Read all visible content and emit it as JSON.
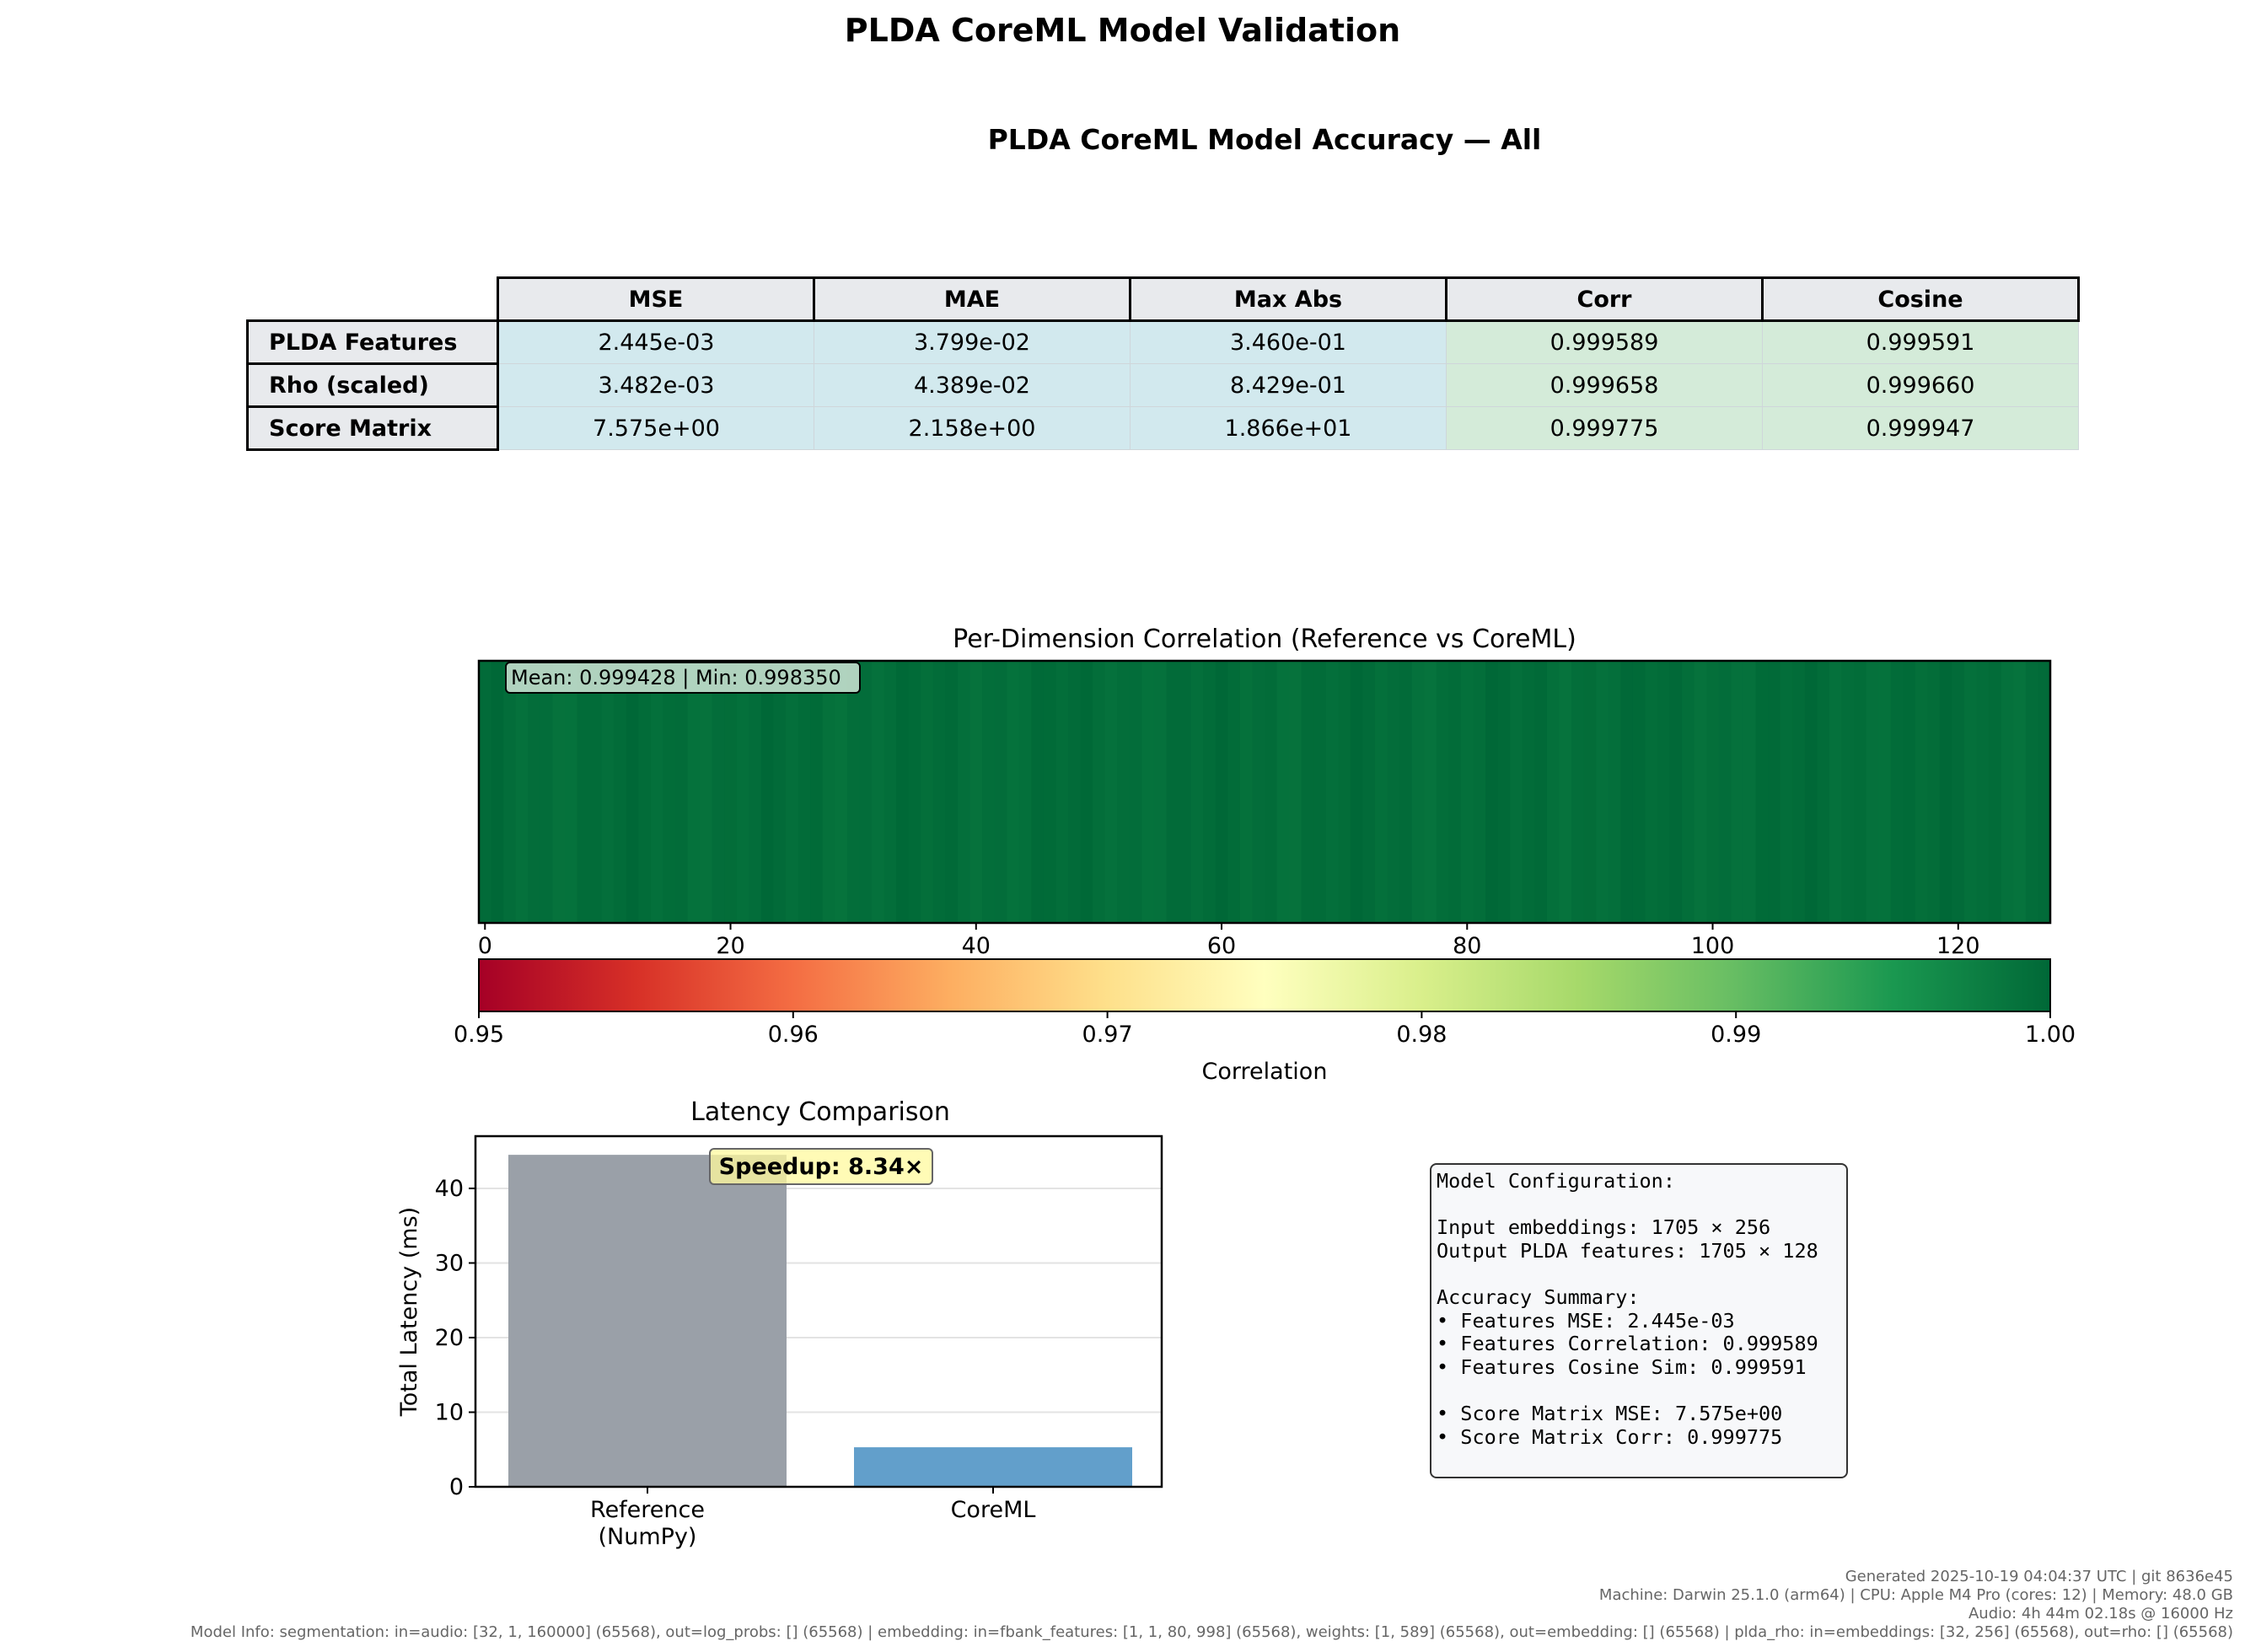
{
  "title": "PLDA CoreML Model Validation",
  "accuracy_table": {
    "title": "PLDA CoreML Model Accuracy — All",
    "columns": [
      "MSE",
      "MAE",
      "Max Abs",
      "Corr",
      "Cosine"
    ],
    "rows": [
      {
        "label": "PLDA Features",
        "cells": [
          "2.445e-03",
          "3.799e-02",
          "3.460e-01",
          "0.999589",
          "0.999591"
        ]
      },
      {
        "label": "Rho (scaled)",
        "cells": [
          "3.482e-03",
          "4.389e-02",
          "8.429e-01",
          "0.999658",
          "0.999660"
        ]
      },
      {
        "label": "Score Matrix",
        "cells": [
          "7.575e+00",
          "2.158e+00",
          "1.866e+01",
          "0.999775",
          "0.999947"
        ]
      }
    ]
  },
  "config_box": {
    "text": "Model Configuration:\n\nInput embeddings: 1705 × 256\nOutput PLDA features: 1705 × 128\n\nAccuracy Summary:\n• Features MSE: 2.445e-03\n• Features Correlation: 0.999589\n• Features Cosine Sim: 0.999591\n\n• Score Matrix MSE: 7.575e+00\n• Score Matrix Corr: 0.999775"
  },
  "footer": {
    "line1": "Generated 2025-10-19 04:04:37 UTC | git 8636e45",
    "line2": "Machine: Darwin 25.1.0 (arm64) | CPU: Apple M4 Pro (cores: 12) | Memory: 48.0 GB",
    "line3": "Audio: 4h 44m 02.18s @ 16000 Hz",
    "line4": "Model Info: segmentation: in=audio: [32, 1, 160000] (65568), out=log_probs: [] (65568) | embedding: in=fbank_features: [1, 1, 80, 998] (65568), weights: [1, 589] (65568), out=embedding: [] (65568) | plda_rho: in=embeddings: [32, 256] (65568), out=rho: [] (65568)"
  },
  "chart_data": [
    {
      "type": "heatmap",
      "title": "Per-Dimension Correlation (Reference vs CoreML)",
      "annotation": "Mean: 0.999428 | Min: 0.998350",
      "n_dims": 128,
      "x_ticks": [
        0,
        20,
        40,
        60,
        80,
        100,
        120
      ],
      "mean": 0.999428,
      "min": 0.99835,
      "colorbar": {
        "label": "Correlation",
        "range": [
          0.95,
          1.0
        ],
        "ticks": [
          "0.95",
          "0.96",
          "0.97",
          "0.98",
          "0.99",
          "1.00"
        ],
        "colormap": "RdYlGn",
        "stops": [
          "#a50026",
          "#d73027",
          "#f46d43",
          "#fdae61",
          "#fee08b",
          "#ffffbf",
          "#d9ef8b",
          "#a6d96a",
          "#66bd63",
          "#1a9850",
          "#006837"
        ]
      }
    },
    {
      "type": "bar",
      "title": "Latency Comparison",
      "ylabel": "Total Latency (ms)",
      "categories": [
        "Reference\n(NumPy)",
        "CoreML"
      ],
      "values": [
        44.5,
        5.3
      ],
      "colors": [
        "#9aa0a8",
        "#629fcb"
      ],
      "ylim": [
        0,
        47
      ],
      "yticks": [
        0,
        10,
        20,
        30,
        40
      ],
      "annotation": "Speedup: 8.34×",
      "grid": "y"
    }
  ]
}
